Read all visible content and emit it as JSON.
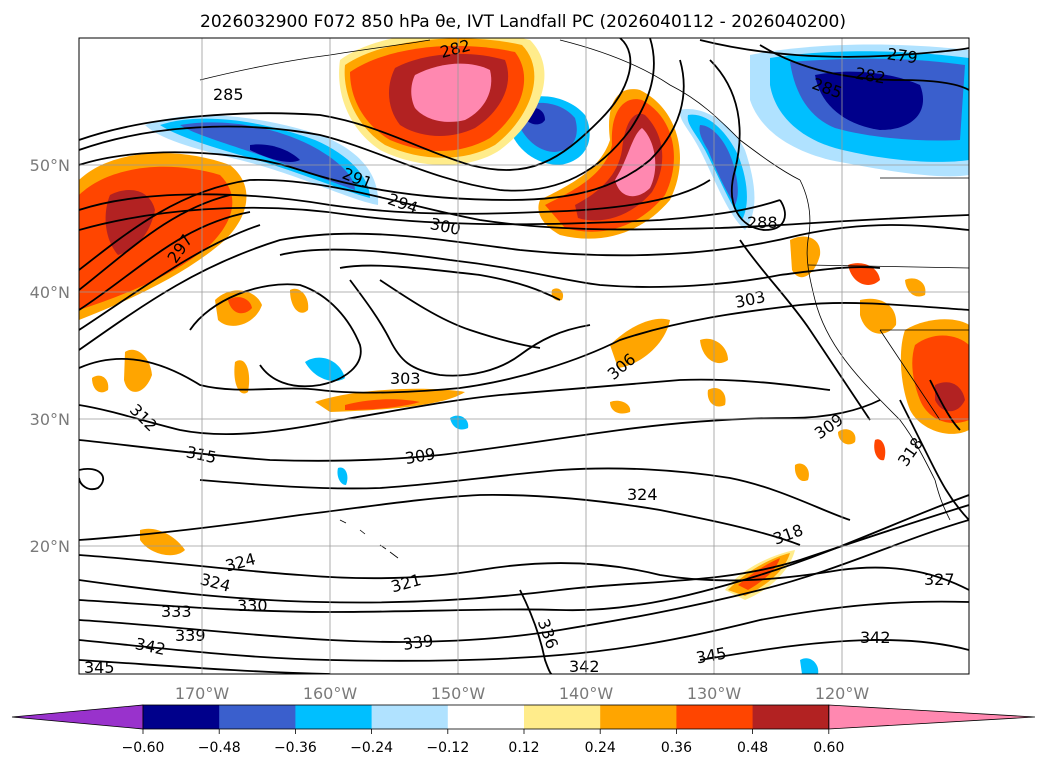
{
  "title": "2026032900 F072 850 hPa θe, IVT Landfall PC (2026040112 - 2026040200)",
  "map": {
    "lon_ticks": [
      "170°W",
      "160°W",
      "150°W",
      "140°W",
      "130°W",
      "120°W"
    ],
    "lat_ticks": [
      "50°N",
      "40°N",
      "30°N",
      "20°N"
    ],
    "gridlines": true
  },
  "contour_labels": [
    "282",
    "285",
    "279",
    "282",
    "285",
    "291",
    "294",
    "300",
    "297",
    "288",
    "303",
    "306",
    "303",
    "312",
    "315",
    "309",
    "309",
    "324",
    "318",
    "324",
    "321",
    "324",
    "318",
    "327",
    "333",
    "330",
    "339",
    "336",
    "342",
    "342",
    "339",
    "345",
    "342",
    "345"
  ],
  "colorbar": {
    "ticks": [
      "−0.60",
      "−0.48",
      "−0.36",
      "−0.24",
      "−0.12",
      "0.12",
      "0.24",
      "0.36",
      "0.48",
      "0.60"
    ],
    "colors": [
      "#9932cc",
      "#00008b",
      "#3a5fcd",
      "#00bfff",
      "#b0e2ff",
      "#ffffff",
      "#ffec8b",
      "#ffa500",
      "#ff4500",
      "#b22222",
      "#ff88b0"
    ]
  }
}
